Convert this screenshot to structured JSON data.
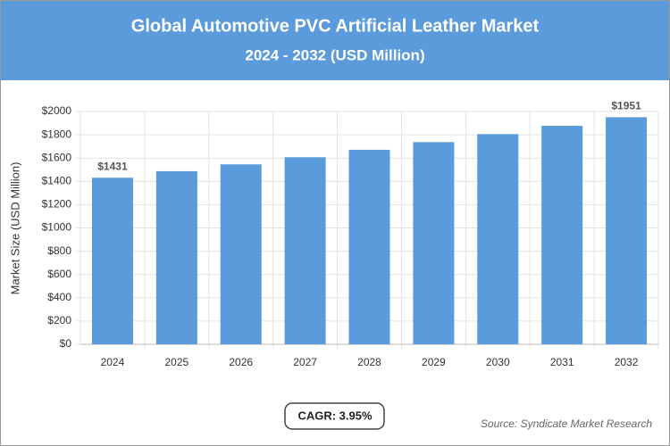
{
  "chart_data": {
    "type": "bar",
    "title": "Global Automotive PVC Artificial Leather Market",
    "subtitle": "2024 - 2032 (USD Million)",
    "y_label": "Market Size (USD Million)",
    "categories": [
      "2024",
      "2025",
      "2026",
      "2027",
      "2028",
      "2029",
      "2030",
      "2031",
      "2032"
    ],
    "values": [
      1431,
      1487,
      1546,
      1607,
      1671,
      1737,
      1806,
      1877,
      1951
    ],
    "value_labels": [
      "$1431",
      null,
      null,
      null,
      null,
      null,
      null,
      null,
      "$1951"
    ],
    "color": "#5b9bdc",
    "ylim": [
      0,
      2000
    ],
    "yticks": [
      {
        "value": 0,
        "label": "$0"
      },
      {
        "value": 200,
        "label": "$200"
      },
      {
        "value": 400,
        "label": "$400"
      },
      {
        "value": 600,
        "label": "$600"
      },
      {
        "value": 800,
        "label": "$800"
      },
      {
        "value": 1000,
        "label": "$1000"
      },
      {
        "value": 1200,
        "label": "$1200"
      },
      {
        "value": 1400,
        "label": "$1400"
      },
      {
        "value": 1600,
        "label": "$1600"
      },
      {
        "value": 1800,
        "label": "$1800"
      },
      {
        "value": 2000,
        "label": "$2000"
      }
    ],
    "grid": true,
    "cagr": "CAGR: 3.95%",
    "source": "Source: Syndicate Market Research"
  }
}
